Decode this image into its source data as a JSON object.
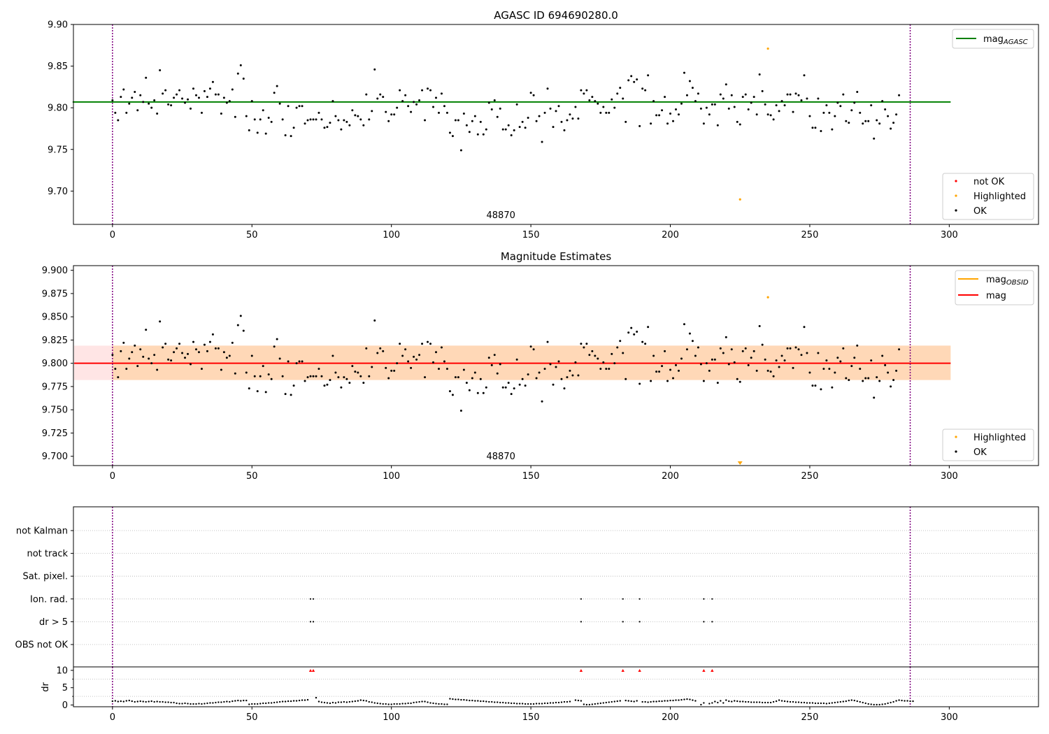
{
  "chart_data": [
    {
      "type": "scatter",
      "title": "AGASC ID 694690280.0",
      "xlim": [
        -14,
        332
      ],
      "ylim": [
        9.66,
        9.9
      ],
      "xticks": [
        0,
        50,
        100,
        150,
        200,
        250,
        300
      ],
      "yticks": [
        9.7,
        9.75,
        9.8,
        9.85,
        9.9
      ],
      "ytick_labels": [
        "9.70",
        "9.75",
        "9.80",
        "9.85",
        "9.90"
      ],
      "annotation": "48870",
      "annotation_x": 143,
      "vlines": [
        0,
        286
      ],
      "hline": {
        "label_base": "mag",
        "label_sub": "AGASC",
        "value": 9.807,
        "x_range": [
          0,
          300
        ],
        "color": "#008000"
      },
      "legend_points": [
        {
          "label": "not OK",
          "color": "#ff0000"
        },
        {
          "label": "Highlighted",
          "color": "#ffa500"
        },
        {
          "label": "OK",
          "color": "#000000"
        }
      ],
      "highlighted": [
        [
          235,
          9.871
        ],
        [
          225,
          9.69
        ]
      ]
    },
    {
      "type": "scatter",
      "title": "Magnitude Estimates",
      "xlim": [
        -14,
        332
      ],
      "ylim": [
        9.69,
        9.905
      ],
      "xticks": [
        0,
        50,
        100,
        150,
        200,
        250,
        300
      ],
      "yticks": [
        9.7,
        9.725,
        9.75,
        9.775,
        9.8,
        9.825,
        9.85,
        9.875,
        9.9
      ],
      "ytick_labels": [
        "9.700",
        "9.725",
        "9.750",
        "9.775",
        "9.800",
        "9.825",
        "9.850",
        "9.875",
        "9.900"
      ],
      "annotation": "48870",
      "annotation_x": 143,
      "vlines": [
        0,
        286
      ],
      "band_mag_obsid": {
        "low": 9.782,
        "high": 9.819,
        "color": "#ffa500"
      },
      "band_mag": {
        "low": 9.782,
        "high": 9.819,
        "color": "#ff0000"
      },
      "mag_line": {
        "value": 9.8,
        "x_range": [
          0,
          300
        ],
        "color": "#ff0000"
      },
      "legend_lines": [
        {
          "label_base": "mag",
          "label_sub": "OBSID",
          "color": "#ffa500"
        },
        {
          "label_base": "mag",
          "label_sub": "",
          "color": "#ff0000"
        }
      ],
      "legend_points": [
        {
          "label": "Highlighted",
          "color": "#ffa500"
        },
        {
          "label": "OK",
          "color": "#000000"
        }
      ],
      "highlighted": [
        [
          235,
          9.871
        ]
      ],
      "off_scale_marker": {
        "x": 225,
        "color": "#ffa500"
      }
    },
    {
      "type": "scatter",
      "title": "",
      "xlim": [
        -14,
        332
      ],
      "categories": [
        "not Kalman",
        "not track",
        "Sat. pixel.",
        "Ion. rad.",
        "dr > 5",
        "OBS not OK"
      ],
      "flags": {
        "Ion. rad.": [
          71,
          72,
          168,
          183,
          189,
          212,
          215
        ],
        "dr > 5": [
          71,
          72,
          168,
          183,
          189,
          212,
          215
        ]
      },
      "vlines": [
        0,
        286
      ]
    },
    {
      "type": "scatter",
      "title": "",
      "ylabel": "dr",
      "xlim": [
        -14,
        332
      ],
      "ylim": [
        -0.5,
        11
      ],
      "xticks": [
        0,
        50,
        100,
        150,
        200,
        250,
        300
      ],
      "yticks": [
        0,
        5,
        10
      ],
      "ytick_labels": [
        "0",
        "5",
        "10"
      ],
      "clipped_at": 10,
      "clipped_x": [
        71,
        72,
        168,
        183,
        189,
        212,
        215
      ],
      "vlines": [
        0,
        286
      ]
    }
  ],
  "ok_mags": [
    9.809,
    9.794,
    9.785,
    9.813,
    9.822,
    9.794,
    9.805,
    9.812,
    9.819,
    9.797,
    9.815,
    9.807,
    9.836,
    9.805,
    9.8,
    9.809,
    9.793,
    9.845,
    9.817,
    9.821,
    9.804,
    9.803,
    9.812,
    9.816,
    9.821,
    9.811,
    9.806,
    9.81,
    9.799,
    9.823,
    9.815,
    9.812,
    9.794,
    9.82,
    9.813,
    9.823,
    9.831,
    9.816,
    9.816,
    9.793,
    9.812,
    9.806,
    9.808,
    9.822,
    9.789,
    9.841,
    9.851,
    9.835,
    9.79,
    9.773,
    9.808,
    9.786,
    9.77,
    9.786,
    9.797,
    9.769,
    9.788,
    9.783,
    9.818,
    9.826,
    9.805,
    9.786,
    9.767,
    9.802,
    9.766,
    9.776,
    9.8,
    9.802,
    9.802,
    9.781,
    9.785,
    9.786,
    9.786,
    9.786,
    9.794,
    9.786,
    9.776,
    9.777,
    9.782,
    9.808,
    9.79,
    9.785,
    9.774,
    9.785,
    9.783,
    9.779,
    9.797,
    9.791,
    9.79,
    9.786,
    9.779,
    9.816,
    9.786,
    9.796,
    9.846,
    9.811,
    9.816,
    9.813,
    9.795,
    9.784,
    9.792,
    9.792,
    9.8,
    9.821,
    9.808,
    9.815,
    9.802,
    9.795,
    9.807,
    9.804,
    9.809,
    9.821,
    9.785,
    9.823,
    9.821,
    9.801,
    9.812,
    9.794,
    9.817,
    9.802,
    9.794,
    9.77,
    9.766,
    9.785,
    9.785,
    9.749,
    9.793,
    9.779,
    9.771,
    9.784,
    9.79,
    9.768,
    9.783,
    9.768,
    9.774,
    9.806,
    9.798,
    9.809,
    9.789,
    9.799,
    9.774,
    9.774,
    9.779,
    9.767,
    9.773,
    9.804,
    9.777,
    9.783,
    9.776,
    9.788,
    9.818,
    9.815,
    9.784,
    9.79,
    9.759,
    9.794,
    9.823,
    9.799,
    9.777,
    9.796,
    9.802,
    9.783,
    9.773,
    9.785,
    9.792,
    9.787,
    9.801,
    9.787,
    9.821,
    9.817,
    9.821,
    9.809,
    9.813,
    9.808,
    9.805,
    9.794,
    9.801,
    9.794,
    9.794,
    9.81,
    9.8,
    9.817,
    9.824,
    9.811,
    9.783,
    9.833,
    9.838,
    9.831,
    9.834,
    9.778,
    9.823,
    9.821,
    9.839,
    9.781,
    9.808,
    9.791,
    9.791,
    9.797,
    9.813,
    9.781,
    9.793,
    9.784,
    9.798,
    9.792,
    9.805,
    9.842,
    9.815,
    9.832,
    9.824,
    9.808,
    9.817,
    9.799,
    9.781,
    9.8,
    9.792,
    9.804,
    9.804,
    9.779,
    9.816,
    9.811,
    9.828,
    9.799,
    9.815,
    9.801,
    9.783,
    9.78,
    9.813,
    9.816,
    9.798,
    9.806,
    9.813,
    9.792,
    9.84,
    9.82,
    9.804,
    9.792,
    9.791,
    9.786,
    9.803,
    9.796,
    9.808,
    9.803,
    9.816,
    9.816,
    9.795,
    9.817,
    9.815,
    9.809,
    9.839,
    9.811,
    9.79,
    9.776,
    9.776,
    9.811,
    9.772,
    9.794,
    9.803,
    9.794,
    9.774,
    9.79,
    9.806,
    9.802,
    9.816,
    9.784,
    9.782,
    9.797,
    9.806,
    9.819,
    9.794,
    9.781,
    9.784,
    9.784,
    9.803,
    9.763,
    9.785,
    9.781,
    9.808,
    9.798,
    9.79,
    9.775,
    9.782,
    9.792,
    9.815
  ],
  "dr_values": [
    1.1,
    1.2,
    1.0,
    1.1,
    1.0,
    1.2,
    1.3,
    1.1,
    0.9,
    1.0,
    1.1,
    1.0,
    0.9,
    1.0,
    1.1,
    0.9,
    1.0,
    0.9,
    0.9,
    0.8,
    0.8,
    0.7,
    0.7,
    0.5,
    0.4,
    0.4,
    0.5,
    0.4,
    0.3,
    0.3,
    0.3,
    0.4,
    0.3,
    0.4,
    0.5,
    0.6,
    0.6,
    0.7,
    0.8,
    0.8,
    0.9,
    1.0,
    0.9,
    1.1,
    1.2,
    1.3,
    1.2,
    1.3,
    1.3,
    0.2,
    0.3,
    0.3,
    0.3,
    0.4,
    0.5,
    0.5,
    0.6,
    0.6,
    0.7,
    0.8,
    0.9,
    1.0,
    1.0,
    1.1,
    1.1,
    1.2,
    1.2,
    1.3,
    1.4,
    1.4,
    1.5,
    10,
    10,
    2.1,
    1.0,
    0.8,
    0.7,
    0.6,
    0.5,
    0.7,
    0.6,
    0.8,
    0.8,
    0.9,
    0.8,
    0.9,
    1.0,
    1.1,
    1.2,
    1.4,
    1.3,
    1.2,
    0.9,
    0.8,
    0.6,
    0.5,
    0.4,
    0.3,
    0.3,
    0.2,
    0.2,
    0.3,
    0.3,
    0.3,
    0.4,
    0.4,
    0.5,
    0.5,
    0.7,
    0.8,
    0.9,
    1.0,
    1.0,
    0.8,
    0.6,
    0.5,
    0.4,
    0.3,
    0.3,
    0.2,
    0.2,
    1.8,
    1.7,
    1.6,
    1.6,
    1.5,
    1.5,
    1.4,
    1.3,
    1.3,
    1.2,
    1.2,
    1.1,
    1.1,
    1.0,
    0.9,
    0.9,
    0.8,
    0.8,
    0.7,
    0.7,
    0.6,
    0.6,
    0.5,
    0.5,
    0.4,
    0.4,
    0.4,
    0.3,
    0.3,
    0.3,
    0.3,
    0.4,
    0.4,
    0.4,
    0.5,
    0.5,
    0.6,
    0.6,
    0.7,
    0.7,
    0.8,
    0.9,
    0.9,
    1.0,
    10,
    1.4,
    1.3,
    1.2,
    0.2,
    0.1,
    0.1,
    0.2,
    0.3,
    0.4,
    0.5,
    0.6,
    0.7,
    0.8,
    0.9,
    1.0,
    1.1,
    1.2,
    10,
    1.3,
    1.2,
    1.1,
    1.0,
    1.2,
    10,
    0.9,
    0.9,
    0.8,
    0.9,
    1.0,
    1.0,
    1.1,
    1.1,
    1.2,
    1.2,
    1.3,
    1.3,
    1.4,
    1.4,
    1.5,
    1.6,
    1.7,
    1.6,
    1.4,
    1.2,
    10,
    0.1,
    0.6,
    10,
    0.4,
    0.6,
    1.0,
    0.7,
    1.2,
    0.6,
    1.4,
    1.1,
    1.0,
    1.2,
    1.1,
    1.0,
    1.0,
    0.9,
    0.9,
    0.8,
    0.8,
    0.8,
    0.8,
    0.7,
    0.7,
    0.7,
    0.7,
    0.9,
    1.1,
    1.4,
    1.2,
    1.1,
    1.0,
    0.9,
    0.9,
    0.8,
    0.8,
    0.7,
    0.7,
    0.6,
    0.6,
    0.6,
    0.5,
    0.5,
    0.5,
    0.5,
    0.4,
    0.5,
    0.6,
    0.7,
    0.8,
    0.9,
    1.0,
    1.1,
    1.3,
    1.4,
    1.3,
    1.1,
    0.9,
    0.7,
    0.5,
    0.3,
    0.2,
    0.1,
    0.1,
    0.1,
    0.2,
    0.3,
    0.5,
    0.7,
    0.9,
    1.2,
    1.4,
    1.3,
    1.2,
    1.2,
    1.1,
    1.1
  ],
  "colors": {
    "ok": "#000000",
    "highlighted": "#ffa500",
    "not_ok": "#ff0000",
    "vline": "#800080",
    "grid": "#b0b0b0"
  }
}
